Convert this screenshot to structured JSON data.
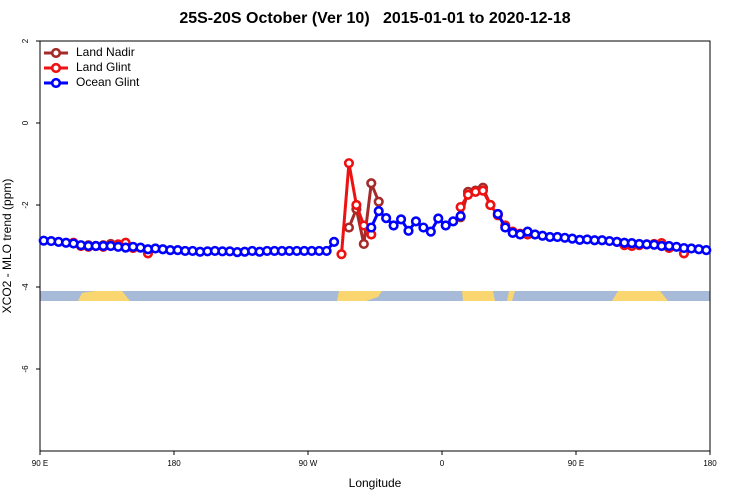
{
  "chart_data": {
    "type": "line",
    "title": "25S-20S October (Ver 10)   2015-01-01 to 2020-12-18",
    "x_label": "Longitude",
    "y_label": "XCO2 - MLO trend (ppm)",
    "xlim": [
      90,
      540
    ],
    "xticks": [
      {
        "value": 90,
        "label": "90 E"
      },
      {
        "value": 180,
        "label": "180"
      },
      {
        "value": 270,
        "label": "90 W"
      },
      {
        "value": 360,
        "label": "0"
      },
      {
        "value": 450,
        "label": "90 E"
      },
      {
        "value": 540,
        "label": "180"
      }
    ],
    "ylim": [
      -8,
      2
    ],
    "yticks": [
      2,
      0,
      -2,
      -4,
      -6
    ],
    "legend": "top-left",
    "x": [
      92.5,
      97.5,
      102.5,
      107.5,
      112.5,
      117.5,
      122.5,
      127.5,
      132.5,
      137.5,
      142.5,
      147.5,
      152.5,
      157.5,
      162.5,
      167.5,
      172.5,
      177.5,
      182.5,
      187.5,
      192.5,
      197.5,
      202.5,
      207.5,
      212.5,
      217.5,
      222.5,
      227.5,
      232.5,
      237.5,
      242.5,
      247.5,
      252.5,
      257.5,
      262.5,
      267.5,
      272.5,
      277.5,
      282.5,
      287.5,
      292.5,
      297.5,
      302.5,
      307.5,
      312.5,
      317.5,
      322.5,
      327.5,
      332.5,
      337.5,
      342.5,
      347.5,
      352.5,
      357.5,
      362.5,
      367.5,
      372.5,
      377.5,
      382.5,
      387.5,
      392.5,
      397.5,
      402.5,
      407.5,
      412.5,
      417.5,
      422.5,
      427.5,
      432.5,
      437.5,
      442.5,
      447.5,
      452.5,
      457.5,
      462.5,
      467.5,
      472.5,
      477.5,
      482.5,
      487.5,
      492.5,
      497.5,
      502.5,
      507.5,
      512.5,
      517.5,
      522.5,
      527.5,
      532.5,
      537.5
    ],
    "series": [
      {
        "name": "Land Nadir",
        "color": "#a52a2a",
        "values": [
          null,
          null,
          null,
          null,
          null,
          null,
          -2.98,
          -3.0,
          -2.98,
          -2.95,
          null,
          null,
          null,
          null,
          null,
          null,
          null,
          null,
          null,
          null,
          null,
          null,
          null,
          null,
          null,
          null,
          null,
          null,
          null,
          null,
          null,
          null,
          null,
          null,
          null,
          null,
          null,
          null,
          null,
          null,
          null,
          -2.55,
          -2.1,
          -2.95,
          -1.47,
          -1.92,
          null,
          null,
          null,
          null,
          null,
          null,
          null,
          null,
          null,
          null,
          -2.3,
          -1.68,
          -1.65,
          -1.58,
          -2.0,
          null,
          null,
          null,
          null,
          null,
          null,
          null,
          null,
          null,
          null,
          null,
          null,
          null,
          null,
          null,
          null,
          null,
          null,
          null,
          null,
          null,
          null,
          null,
          null,
          null,
          null,
          null,
          null,
          null
        ]
      },
      {
        "name": "Land Glint",
        "color": "#ee1111",
        "values": [
          null,
          null,
          null,
          null,
          -2.92,
          -3.0,
          -3.02,
          -3.0,
          -3.02,
          -2.98,
          -2.96,
          -2.92,
          -3.05,
          null,
          -3.18,
          null,
          null,
          null,
          null,
          null,
          null,
          null,
          null,
          null,
          null,
          null,
          null,
          null,
          null,
          null,
          null,
          null,
          null,
          null,
          null,
          null,
          null,
          null,
          null,
          null,
          -3.2,
          -0.98,
          -2.0,
          -2.5,
          -2.72,
          null,
          null,
          null,
          null,
          null,
          null,
          null,
          null,
          null,
          null,
          null,
          -2.05,
          -1.75,
          -1.68,
          -1.65,
          -2.0,
          -2.25,
          -2.5,
          -2.65,
          -2.7,
          -2.72,
          null,
          null,
          null,
          null,
          null,
          null,
          null,
          null,
          null,
          null,
          null,
          -2.9,
          -2.98,
          -3.0,
          -2.98,
          -2.96,
          -2.95,
          -2.93,
          -3.05,
          null,
          -3.18,
          null,
          null,
          null
        ]
      },
      {
        "name": "Ocean Glint",
        "color": "#0000ff",
        "values": [
          -2.87,
          -2.88,
          -2.9,
          -2.92,
          -2.94,
          -2.98,
          -3.0,
          -3.0,
          -3.0,
          -3.0,
          -3.02,
          -3.04,
          -3.02,
          -3.04,
          -3.08,
          -3.06,
          -3.08,
          -3.1,
          -3.1,
          -3.12,
          -3.12,
          -3.14,
          -3.13,
          -3.12,
          -3.13,
          -3.13,
          -3.15,
          -3.14,
          -3.12,
          -3.14,
          -3.12,
          -3.12,
          -3.12,
          -3.12,
          -3.12,
          -3.12,
          -3.12,
          -3.12,
          -3.12,
          -2.9,
          null,
          null,
          null,
          null,
          -2.55,
          -2.15,
          -2.32,
          -2.5,
          -2.35,
          -2.63,
          -2.4,
          -2.55,
          -2.65,
          -2.33,
          -2.5,
          -2.4,
          -2.27,
          null,
          null,
          null,
          null,
          -2.22,
          -2.55,
          -2.68,
          -2.72,
          -2.65,
          -2.72,
          -2.75,
          -2.78,
          -2.78,
          -2.8,
          -2.82,
          -2.85,
          -2.84,
          -2.86,
          -2.86,
          -2.88,
          -2.9,
          -2.92,
          -2.93,
          -2.95,
          -2.96,
          -2.97,
          -3.0,
          -3.0,
          -3.02,
          -3.05,
          -3.06,
          -3.08,
          -3.1
        ]
      }
    ]
  }
}
